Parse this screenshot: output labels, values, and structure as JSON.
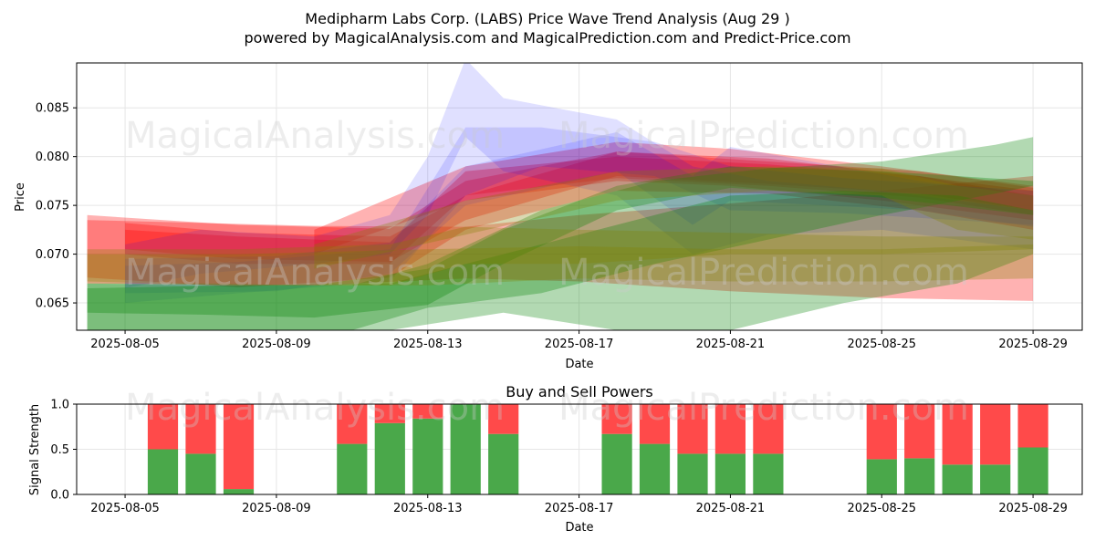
{
  "title": {
    "line1": "Medipharm Labs Corp. (LABS) Price Wave Trend Analysis (Aug 29 )",
    "line2": "powered by MagicalAnalysis.com and MagicalPrediction.com and Predict-Price.com"
  },
  "watermarks": [
    "MagicalAnalysis.com",
    "MagicalPrediction.com"
  ],
  "colors": {
    "red": "#ff0000",
    "green": "#008000",
    "blue": "#0000ff",
    "olive": "#808000",
    "buy": "#4aa84a",
    "sell": "#ff4a4a"
  },
  "chart_data": [
    {
      "type": "area",
      "title": "",
      "xlabel": "Date",
      "ylabel": "Price",
      "x_ticks": [
        "2025-08-05",
        "2025-08-09",
        "2025-08-13",
        "2025-08-17",
        "2025-08-21",
        "2025-08-25",
        "2025-08-29"
      ],
      "y_ticks": [
        "0.065",
        "0.070",
        "0.075",
        "0.080",
        "0.085"
      ],
      "xlim": [
        "2025-08-03",
        "2025-08-30"
      ],
      "ylim": [
        0.0622,
        0.0896
      ],
      "grid": true,
      "series": [
        {
          "color": "red",
          "opacity": 0.3,
          "x": [
            "2025-08-04",
            "2025-08-08",
            "2025-08-12",
            "2025-08-14",
            "2025-08-18",
            "2025-08-22",
            "2025-08-26",
            "2025-08-29"
          ],
          "lower": [
            0.0676,
            0.0666,
            0.0676,
            0.0725,
            0.0765,
            0.0762,
            0.0745,
            0.0725
          ],
          "upper": [
            0.074,
            0.073,
            0.0726,
            0.0775,
            0.0805,
            0.0798,
            0.078,
            0.0765
          ]
        },
        {
          "color": "red",
          "opacity": 0.3,
          "x": [
            "2025-08-05",
            "2025-08-08",
            "2025-08-12",
            "2025-08-14",
            "2025-08-18",
            "2025-08-22",
            "2025-08-26",
            "2025-08-29"
          ],
          "lower": [
            0.07,
            0.069,
            0.069,
            0.076,
            0.0778,
            0.077,
            0.0758,
            0.074
          ],
          "upper": [
            0.0725,
            0.0718,
            0.0712,
            0.0785,
            0.08,
            0.0792,
            0.078,
            0.076
          ]
        },
        {
          "color": "red",
          "opacity": 0.3,
          "x": [
            "2025-08-05",
            "2025-08-08",
            "2025-08-12",
            "2025-08-14",
            "2025-08-18",
            "2025-08-22",
            "2025-08-26",
            "2025-08-29"
          ],
          "lower": [
            0.0705,
            0.0695,
            0.0692,
            0.0735,
            0.078,
            0.0772,
            0.0762,
            0.0745
          ],
          "upper": [
            0.0732,
            0.0722,
            0.0718,
            0.076,
            0.0805,
            0.0795,
            0.0785,
            0.0768
          ]
        },
        {
          "color": "red",
          "opacity": 0.3,
          "x": [
            "2025-08-04",
            "2025-08-10",
            "2025-08-14",
            "2025-08-17",
            "2025-08-21",
            "2025-08-25",
            "2025-08-29"
          ],
          "lower": [
            0.067,
            0.0668,
            0.0675,
            0.0672,
            0.0662,
            0.0655,
            0.0652
          ],
          "upper": [
            0.0735,
            0.0729,
            0.0728,
            0.074,
            0.0752,
            0.0765,
            0.078
          ]
        },
        {
          "color": "red",
          "opacity": 0.3,
          "x": [
            "2025-08-10",
            "2025-08-14",
            "2025-08-18",
            "2025-08-21",
            "2025-08-25",
            "2025-08-29"
          ],
          "lower": [
            0.07,
            0.0755,
            0.0775,
            0.077,
            0.0755,
            0.0735
          ],
          "upper": [
            0.0725,
            0.079,
            0.0815,
            0.0808,
            0.079,
            0.077
          ]
        },
        {
          "color": "blue",
          "opacity": 0.12,
          "x": [
            "2025-08-05",
            "2025-08-07",
            "2025-08-10",
            "2025-08-12",
            "2025-08-13",
            "2025-08-14",
            "2025-08-15",
            "2025-08-18",
            "2025-08-20",
            "2025-08-22",
            "2025-08-25",
            "2025-08-29"
          ],
          "lower": [
            0.0665,
            0.068,
            0.069,
            0.07,
            0.074,
            0.082,
            0.0785,
            0.076,
            0.07,
            0.072,
            0.0725,
            0.0705
          ],
          "upper": [
            0.071,
            0.0725,
            0.0718,
            0.074,
            0.08,
            0.09,
            0.086,
            0.0838,
            0.079,
            0.0775,
            0.0765,
            0.0745
          ]
        },
        {
          "color": "blue",
          "opacity": 0.12,
          "x": [
            "2025-08-05",
            "2025-08-08",
            "2025-08-12",
            "2025-08-14",
            "2025-08-16",
            "2025-08-19",
            "2025-08-21",
            "2025-08-24",
            "2025-08-29"
          ],
          "lower": [
            0.065,
            0.066,
            0.0672,
            0.076,
            0.079,
            0.078,
            0.0745,
            0.0742,
            0.073
          ],
          "upper": [
            0.0688,
            0.0692,
            0.0705,
            0.083,
            0.083,
            0.0815,
            0.079,
            0.0778,
            0.0765
          ]
        },
        {
          "color": "blue",
          "opacity": 0.12,
          "x": [
            "2025-08-05",
            "2025-08-09",
            "2025-08-12",
            "2025-08-14",
            "2025-08-18",
            "2025-08-20",
            "2025-08-21",
            "2025-08-26",
            "2025-08-29"
          ],
          "lower": [
            0.066,
            0.0662,
            0.068,
            0.075,
            0.0785,
            0.073,
            0.0755,
            0.0745,
            0.0728
          ],
          "upper": [
            0.0695,
            0.0698,
            0.0712,
            0.079,
            0.0825,
            0.078,
            0.081,
            0.0775,
            0.076
          ]
        },
        {
          "color": "green",
          "opacity": 0.3,
          "x": [
            "2025-08-04",
            "2025-08-07",
            "2025-08-11",
            "2025-08-13",
            "2025-08-16",
            "2025-08-19",
            "2025-08-22",
            "2025-08-25",
            "2025-08-28",
            "2025-08-29"
          ],
          "lower": [
            0.0622,
            0.0622,
            0.0622,
            0.0645,
            0.066,
            0.069,
            0.0715,
            0.074,
            0.0762,
            0.077
          ],
          "upper": [
            0.067,
            0.0668,
            0.0668,
            0.069,
            0.0745,
            0.0775,
            0.0788,
            0.0795,
            0.0812,
            0.082
          ]
        },
        {
          "color": "green",
          "opacity": 0.3,
          "x": [
            "2025-08-04",
            "2025-08-07",
            "2025-08-10",
            "2025-08-13",
            "2025-08-15",
            "2025-08-18",
            "2025-08-21",
            "2025-08-25",
            "2025-08-29"
          ],
          "lower": [
            0.064,
            0.0638,
            0.0635,
            0.0648,
            0.069,
            0.0745,
            0.0768,
            0.0758,
            0.074
          ],
          "upper": [
            0.067,
            0.067,
            0.0668,
            0.0685,
            0.0725,
            0.077,
            0.079,
            0.0785,
            0.0775
          ]
        },
        {
          "color": "green",
          "opacity": 0.3,
          "x": [
            "2025-08-04",
            "2025-08-08",
            "2025-08-12",
            "2025-08-15",
            "2025-08-18",
            "2025-08-21",
            "2025-08-24",
            "2025-08-27",
            "2025-08-29"
          ],
          "lower": [
            0.0622,
            0.0622,
            0.0622,
            0.064,
            0.0622,
            0.0622,
            0.065,
            0.067,
            0.07
          ],
          "upper": [
            0.0665,
            0.0668,
            0.067,
            0.07,
            0.073,
            0.076,
            0.0765,
            0.076,
            0.0745
          ]
        },
        {
          "color": "olive",
          "opacity": 0.3,
          "x": [
            "2025-08-04",
            "2025-08-08",
            "2025-08-12",
            "2025-08-14",
            "2025-08-17",
            "2025-08-21",
            "2025-08-25",
            "2025-08-29"
          ],
          "lower": [
            0.067,
            0.0668,
            0.0668,
            0.069,
            0.069,
            0.07,
            0.07,
            0.0705
          ],
          "upper": [
            0.0705,
            0.0705,
            0.071,
            0.0728,
            0.0725,
            0.0722,
            0.0718,
            0.0718
          ]
        },
        {
          "color": "olive",
          "opacity": 0.3,
          "x": [
            "2025-08-04",
            "2025-08-08",
            "2025-08-13",
            "2025-08-17",
            "2025-08-21",
            "2025-08-25",
            "2025-08-29"
          ],
          "lower": [
            0.0672,
            0.0668,
            0.0668,
            0.0675,
            0.0672,
            0.0672,
            0.0675
          ],
          "upper": [
            0.07,
            0.07,
            0.0705,
            0.0708,
            0.0705,
            0.0705,
            0.071
          ]
        },
        {
          "color": "olive",
          "opacity": 0.3,
          "x": [
            "2025-08-10",
            "2025-08-14",
            "2025-08-18",
            "2025-08-22",
            "2025-08-25",
            "2025-08-27",
            "2025-08-29"
          ],
          "lower": [
            0.0685,
            0.072,
            0.0755,
            0.0765,
            0.076,
            0.0725,
            0.0715
          ],
          "upper": [
            0.071,
            0.0755,
            0.0785,
            0.079,
            0.0788,
            0.077,
            0.076
          ]
        }
      ]
    },
    {
      "type": "bar",
      "title": "Buy and Sell Powers",
      "xlabel": "Date",
      "ylabel": "Signal Strength",
      "x_ticks": [
        "2025-08-05",
        "2025-08-09",
        "2025-08-13",
        "2025-08-17",
        "2025-08-21",
        "2025-08-25",
        "2025-08-29"
      ],
      "y_ticks": [
        "0.0",
        "0.5",
        "1.0"
      ],
      "ylim": [
        0,
        1
      ],
      "grid": true,
      "categories": [
        "2025-08-06",
        "2025-08-07",
        "2025-08-08",
        "2025-08-11",
        "2025-08-12",
        "2025-08-13",
        "2025-08-14",
        "2025-08-15",
        "2025-08-18",
        "2025-08-19",
        "2025-08-20",
        "2025-08-21",
        "2025-08-22",
        "2025-08-25",
        "2025-08-26",
        "2025-08-27",
        "2025-08-28",
        "2025-08-29"
      ],
      "series": [
        {
          "name": "buy",
          "color": "buy",
          "values": [
            0.5,
            0.45,
            0.06,
            0.56,
            0.79,
            0.84,
            1.0,
            0.67,
            0.67,
            0.56,
            0.45,
            0.45,
            0.45,
            0.39,
            0.4,
            0.33,
            0.33,
            0.52
          ]
        },
        {
          "name": "sell",
          "color": "sell",
          "values": [
            0.5,
            0.55,
            0.94,
            0.44,
            0.21,
            0.16,
            0.0,
            0.33,
            0.33,
            0.44,
            0.55,
            0.55,
            0.55,
            0.61,
            0.6,
            0.67,
            0.67,
            0.48
          ]
        }
      ]
    }
  ]
}
